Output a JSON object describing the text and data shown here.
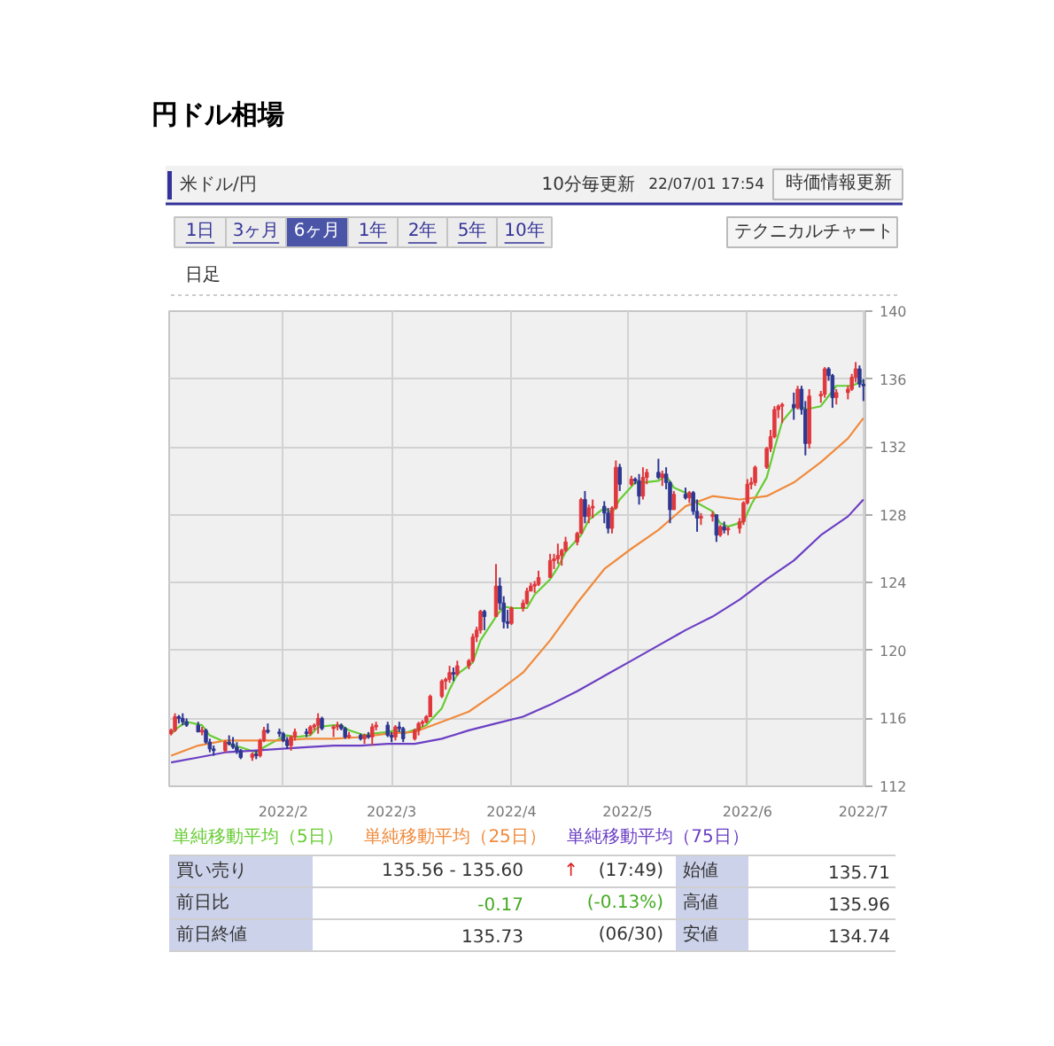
{
  "chart_data": {
    "type": "candlestick",
    "title": "円ドル相場",
    "subtitle": "米ドル/円",
    "x": [
      "2022-01-03",
      "2022-01-04",
      "2022-01-05",
      "2022-01-06",
      "2022-01-07",
      "2022-01-10",
      "2022-01-11",
      "2022-01-12",
      "2022-01-13",
      "2022-01-14",
      "2022-01-17",
      "2022-01-18",
      "2022-01-19",
      "2022-01-20",
      "2022-01-21",
      "2022-01-24",
      "2022-01-25",
      "2022-01-26",
      "2022-01-27",
      "2022-01-28",
      "2022-01-31",
      "2022-02-01",
      "2022-02-02",
      "2022-02-03",
      "2022-02-04",
      "2022-02-07",
      "2022-02-08",
      "2022-02-09",
      "2022-02-10",
      "2022-02-11",
      "2022-02-14",
      "2022-02-15",
      "2022-02-16",
      "2022-02-17",
      "2022-02-18",
      "2022-02-21",
      "2022-02-22",
      "2022-02-23",
      "2022-02-24",
      "2022-02-25",
      "2022-02-28",
      "2022-03-01",
      "2022-03-02",
      "2022-03-03",
      "2022-03-04",
      "2022-03-07",
      "2022-03-08",
      "2022-03-09",
      "2022-03-10",
      "2022-03-11",
      "2022-03-14",
      "2022-03-15",
      "2022-03-16",
      "2022-03-17",
      "2022-03-18",
      "2022-03-21",
      "2022-03-22",
      "2022-03-23",
      "2022-03-24",
      "2022-03-25",
      "2022-03-28",
      "2022-03-29",
      "2022-03-30",
      "2022-03-31",
      "2022-04-01",
      "2022-04-04",
      "2022-04-05",
      "2022-04-06",
      "2022-04-07",
      "2022-04-08",
      "2022-04-11",
      "2022-04-12",
      "2022-04-13",
      "2022-04-14",
      "2022-04-15",
      "2022-04-18",
      "2022-04-19",
      "2022-04-20",
      "2022-04-21",
      "2022-04-22",
      "2022-04-25",
      "2022-04-26",
      "2022-04-27",
      "2022-04-28",
      "2022-04-29",
      "2022-05-02",
      "2022-05-03",
      "2022-05-04",
      "2022-05-05",
      "2022-05-06",
      "2022-05-09",
      "2022-05-10",
      "2022-05-11",
      "2022-05-12",
      "2022-05-13",
      "2022-05-16",
      "2022-05-17",
      "2022-05-18",
      "2022-05-19",
      "2022-05-20",
      "2022-05-23",
      "2022-05-24",
      "2022-05-25",
      "2022-05-26",
      "2022-05-27",
      "2022-05-30",
      "2022-05-31",
      "2022-06-01",
      "2022-06-02",
      "2022-06-03",
      "2022-06-06",
      "2022-06-07",
      "2022-06-08",
      "2022-06-09",
      "2022-06-10",
      "2022-06-13",
      "2022-06-14",
      "2022-06-15",
      "2022-06-16",
      "2022-06-17",
      "2022-06-20",
      "2022-06-21",
      "2022-06-22",
      "2022-06-23",
      "2022-06-24",
      "2022-06-27",
      "2022-06-28",
      "2022-06-29",
      "2022-06-30",
      "2022-07-01"
    ],
    "ohlc": [
      [
        115.1,
        115.4,
        115.0,
        115.3
      ],
      [
        115.3,
        116.3,
        115.2,
        116.1
      ],
      [
        116.1,
        116.2,
        115.7,
        116.0
      ],
      [
        116.0,
        116.3,
        115.6,
        115.8
      ],
      [
        115.8,
        116.0,
        115.5,
        115.6
      ],
      [
        115.6,
        115.8,
        115.2,
        115.2
      ],
      [
        115.2,
        115.5,
        115.0,
        115.3
      ],
      [
        115.3,
        115.4,
        114.5,
        114.6
      ],
      [
        114.6,
        114.8,
        114.0,
        114.2
      ],
      [
        114.2,
        114.4,
        113.8,
        114.1
      ],
      [
        114.1,
        114.7,
        114.0,
        114.6
      ],
      [
        114.6,
        115.0,
        114.4,
        114.5
      ],
      [
        114.5,
        114.9,
        114.2,
        114.3
      ],
      [
        114.3,
        114.6,
        113.9,
        114.1
      ],
      [
        114.1,
        114.2,
        113.6,
        113.7
      ],
      [
        113.7,
        114.0,
        113.5,
        113.9
      ],
      [
        113.9,
        114.1,
        113.6,
        113.8
      ],
      [
        113.8,
        114.8,
        113.7,
        114.7
      ],
      [
        114.7,
        115.5,
        114.6,
        115.3
      ],
      [
        115.3,
        115.7,
        115.1,
        115.2
      ],
      [
        115.2,
        115.4,
        114.9,
        115.1
      ],
      [
        115.1,
        115.2,
        114.6,
        114.7
      ],
      [
        114.7,
        114.9,
        114.2,
        114.4
      ],
      [
        114.4,
        115.0,
        114.1,
        114.9
      ],
      [
        114.9,
        115.4,
        114.7,
        115.2
      ],
      [
        115.2,
        115.4,
        114.9,
        115.1
      ],
      [
        115.1,
        115.6,
        115.0,
        115.5
      ],
      [
        115.5,
        115.7,
        115.3,
        115.6
      ],
      [
        115.6,
        116.3,
        115.1,
        116.0
      ],
      [
        116.0,
        116.1,
        115.3,
        115.4
      ],
      [
        115.4,
        115.6,
        114.9,
        115.5
      ],
      [
        115.5,
        115.8,
        115.3,
        115.6
      ],
      [
        115.6,
        115.7,
        115.3,
        115.4
      ],
      [
        115.4,
        115.5,
        114.8,
        114.9
      ],
      [
        114.9,
        115.2,
        114.8,
        115.0
      ],
      [
        115.0,
        115.1,
        114.7,
        114.8
      ],
      [
        114.8,
        115.1,
        114.5,
        115.0
      ],
      [
        115.0,
        115.2,
        114.8,
        114.9
      ],
      [
        114.9,
        115.7,
        114.4,
        115.5
      ],
      [
        115.5,
        115.8,
        115.3,
        115.6
      ],
      [
        115.6,
        115.8,
        114.9,
        115.0
      ],
      [
        115.0,
        115.2,
        114.6,
        114.9
      ],
      [
        114.9,
        115.6,
        114.7,
        115.5
      ],
      [
        115.5,
        115.8,
        115.2,
        115.4
      ],
      [
        115.4,
        115.5,
        114.6,
        114.8
      ],
      [
        114.8,
        115.4,
        114.7,
        115.3
      ],
      [
        115.3,
        115.8,
        115.0,
        115.7
      ],
      [
        115.7,
        115.9,
        115.5,
        115.8
      ],
      [
        115.8,
        116.2,
        115.7,
        116.1
      ],
      [
        116.1,
        117.4,
        116.1,
        117.3
      ],
      [
        117.3,
        118.3,
        117.2,
        118.2
      ],
      [
        118.2,
        118.4,
        117.7,
        118.3
      ],
      [
        118.3,
        119.1,
        118.1,
        118.7
      ],
      [
        118.7,
        119.0,
        118.2,
        118.6
      ],
      [
        118.6,
        119.4,
        118.5,
        119.1
      ],
      [
        119.1,
        119.5,
        118.9,
        119.4
      ],
      [
        119.4,
        121.0,
        119.3,
        120.8
      ],
      [
        120.8,
        121.4,
        120.5,
        121.2
      ],
      [
        121.2,
        122.4,
        121.0,
        122.3
      ],
      [
        122.3,
        122.4,
        121.2,
        122.0
      ],
      [
        122.0,
        125.1,
        122.0,
        123.8
      ],
      [
        123.8,
        124.3,
        122.4,
        122.8
      ],
      [
        122.8,
        123.2,
        121.3,
        121.7
      ],
      [
        121.7,
        122.4,
        121.3,
        121.6
      ],
      [
        121.6,
        122.6,
        121.5,
        122.5
      ],
      [
        122.5,
        123.0,
        122.3,
        122.8
      ],
      [
        122.8,
        123.7,
        122.7,
        123.5
      ],
      [
        123.5,
        124.0,
        123.5,
        123.8
      ],
      [
        123.8,
        124.1,
        123.4,
        123.9
      ],
      [
        123.9,
        124.7,
        123.8,
        124.3
      ],
      [
        124.3,
        125.7,
        124.3,
        125.3
      ],
      [
        125.3,
        125.7,
        124.8,
        125.4
      ],
      [
        125.4,
        126.3,
        125.1,
        125.6
      ],
      [
        125.6,
        126.0,
        125.0,
        125.9
      ],
      [
        125.9,
        126.7,
        125.8,
        126.4
      ],
      [
        126.4,
        127.0,
        126.2,
        126.9
      ],
      [
        126.9,
        129.0,
        126.9,
        128.9
      ],
      [
        128.9,
        129.4,
        127.5,
        127.9
      ],
      [
        127.9,
        128.6,
        127.5,
        128.4
      ],
      [
        128.4,
        128.9,
        127.8,
        128.5
      ],
      [
        128.5,
        128.8,
        127.5,
        128.1
      ],
      [
        128.1,
        128.4,
        126.9,
        127.2
      ],
      [
        127.2,
        128.5,
        126.9,
        128.4
      ],
      [
        128.4,
        131.2,
        128.3,
        130.8
      ],
      [
        130.8,
        131.0,
        129.4,
        129.8
      ],
      [
        129.8,
        130.3,
        129.7,
        130.1
      ],
      [
        130.1,
        130.2,
        129.8,
        130.0
      ],
      [
        130.0,
        130.4,
        128.6,
        129.1
      ],
      [
        129.1,
        130.8,
        128.9,
        130.2
      ],
      [
        130.2,
        130.7,
        129.8,
        130.5
      ],
      [
        130.5,
        131.3,
        130.1,
        130.2
      ],
      [
        130.2,
        130.6,
        129.7,
        130.4
      ],
      [
        130.4,
        130.8,
        129.5,
        129.9
      ],
      [
        129.9,
        130.0,
        127.5,
        128.3
      ],
      [
        128.3,
        129.4,
        128.3,
        129.2
      ],
      [
        129.2,
        129.6,
        128.9,
        129.0
      ],
      [
        129.0,
        129.4,
        128.7,
        129.3
      ],
      [
        129.3,
        129.4,
        128.0,
        128.2
      ],
      [
        128.2,
        128.9,
        127.0,
        127.8
      ],
      [
        127.8,
        128.1,
        127.4,
        127.9
      ],
      [
        127.9,
        128.2,
        127.6,
        128.0
      ],
      [
        128.0,
        128.0,
        126.4,
        126.8
      ],
      [
        126.8,
        127.4,
        126.7,
        127.3
      ],
      [
        127.3,
        127.6,
        126.9,
        127.1
      ],
      [
        127.1,
        127.3,
        126.8,
        127.2
      ],
      [
        127.2,
        127.8,
        126.9,
        127.6
      ],
      [
        127.6,
        128.8,
        127.4,
        128.7
      ],
      [
        128.7,
        130.1,
        128.6,
        129.8
      ],
      [
        129.8,
        130.2,
        129.5,
        129.9
      ],
      [
        129.9,
        130.9,
        129.7,
        130.8
      ],
      [
        130.8,
        132.0,
        130.7,
        131.9
      ],
      [
        131.9,
        133.0,
        131.7,
        132.6
      ],
      [
        132.6,
        134.4,
        132.5,
        134.2
      ],
      [
        134.2,
        134.5,
        133.7,
        134.4
      ],
      [
        134.4,
        134.6,
        133.4,
        134.5
      ],
      [
        134.5,
        135.2,
        133.6,
        134.3
      ],
      [
        134.3,
        135.6,
        134.2,
        135.4
      ],
      [
        135.4,
        135.6,
        133.9,
        134.2
      ],
      [
        134.2,
        134.7,
        131.5,
        132.2
      ],
      [
        132.2,
        135.4,
        131.9,
        135.0
      ],
      [
        135.0,
        135.3,
        134.6,
        135.1
      ],
      [
        135.1,
        136.7,
        134.9,
        136.6
      ],
      [
        136.6,
        136.7,
        135.9,
        136.2
      ],
      [
        136.2,
        136.3,
        134.3,
        134.9
      ],
      [
        134.9,
        135.4,
        134.5,
        135.2
      ],
      [
        135.2,
        135.6,
        134.8,
        135.4
      ],
      [
        135.4,
        136.3,
        135.3,
        136.1
      ],
      [
        136.1,
        137.0,
        135.8,
        136.6
      ],
      [
        136.6,
        136.8,
        135.5,
        135.7
      ],
      [
        135.7,
        136.0,
        134.7,
        135.6
      ]
    ],
    "colors": [
      "#e0383c",
      "#e0383c",
      "#2e3892",
      "#2e3892",
      "#2e3892",
      "#2e3892",
      "#e0383c",
      "#2e3892",
      "#2e3892",
      "#2e3892",
      "#e0383c",
      "#2e3892",
      "#2e3892",
      "#2e3892",
      "#2e3892",
      "#e0383c",
      "#2e3892",
      "#e0383c",
      "#e0383c",
      "#2e3892",
      "#2e3892",
      "#2e3892",
      "#2e3892",
      "#e0383c",
      "#e0383c",
      "#2e3892",
      "#e0383c",
      "#e0383c",
      "#e0383c",
      "#2e3892",
      "#e0383c",
      "#e0383c",
      "#2e3892",
      "#2e3892",
      "#e0383c",
      "#2e3892",
      "#e0383c",
      "#2e3892",
      "#e0383c",
      "#e0383c",
      "#2e3892",
      "#2e3892",
      "#e0383c",
      "#2e3892",
      "#2e3892",
      "#e0383c",
      "#e0383c",
      "#e0383c",
      "#e0383c",
      "#e0383c",
      "#e0383c",
      "#e0383c",
      "#e0383c",
      "#2e3892",
      "#e0383c",
      "#e0383c",
      "#e0383c",
      "#e0383c",
      "#e0383c",
      "#2e3892",
      "#e0383c",
      "#2e3892",
      "#2e3892",
      "#2e3892",
      "#e0383c",
      "#e0383c",
      "#e0383c",
      "#e0383c",
      "#e0383c",
      "#e0383c",
      "#e0383c",
      "#e0383c",
      "#e0383c",
      "#e0383c",
      "#e0383c",
      "#e0383c",
      "#e0383c",
      "#2e3892",
      "#e0383c",
      "#e0383c",
      "#2e3892",
      "#2e3892",
      "#e0383c",
      "#e0383c",
      "#2e3892",
      "#e0383c",
      "#2e3892",
      "#2e3892",
      "#e0383c",
      "#e0383c",
      "#2e3892",
      "#e0383c",
      "#2e3892",
      "#2e3892",
      "#e0383c",
      "#2e3892",
      "#e0383c",
      "#2e3892",
      "#2e3892",
      "#e0383c",
      "#e0383c",
      "#2e3892",
      "#e0383c",
      "#2e3892",
      "#e0383c",
      "#e0383c",
      "#e0383c",
      "#e0383c",
      "#e0383c",
      "#e0383c",
      "#e0383c",
      "#e0383c",
      "#e0383c",
      "#e0383c",
      "#e0383c",
      "#2e3892",
      "#e0383c",
      "#2e3892",
      "#2e3892",
      "#e0383c",
      "#e0383c",
      "#e0383c",
      "#2e3892",
      "#2e3892",
      "#e0383c",
      "#e0383c",
      "#e0383c",
      "#e0383c",
      "#2e3892",
      "#2e3892"
    ],
    "series": [
      {
        "type": "line",
        "name": "単純移動平均（5日）",
        "color": "#66cc33",
        "x": [
          "2022-01-03",
          "2022-01-05",
          "2022-01-07",
          "2022-01-11",
          "2022-01-13",
          "2022-01-17",
          "2022-01-19",
          "2022-01-21",
          "2022-01-25",
          "2022-01-27",
          "2022-01-31",
          "2022-02-02",
          "2022-02-04",
          "2022-02-08",
          "2022-02-10",
          "2022-02-14",
          "2022-02-16",
          "2022-02-18",
          "2022-02-22",
          "2022-02-24",
          "2022-02-28",
          "2022-03-02",
          "2022-03-04",
          "2022-03-08",
          "2022-03-10",
          "2022-03-14",
          "2022-03-16",
          "2022-03-18",
          "2022-03-22",
          "2022-03-24",
          "2022-03-28",
          "2022-03-30",
          "2022-04-01",
          "2022-04-05",
          "2022-04-07",
          "2022-04-11",
          "2022-04-13",
          "2022-04-15",
          "2022-04-19",
          "2022-04-21",
          "2022-04-25",
          "2022-04-27",
          "2022-04-29",
          "2022-05-03",
          "2022-05-05",
          "2022-05-09",
          "2022-05-11",
          "2022-05-13",
          "2022-05-17",
          "2022-05-19",
          "2022-05-23",
          "2022-05-25",
          "2022-05-27",
          "2022-05-31",
          "2022-06-02",
          "2022-06-06",
          "2022-06-08",
          "2022-06-10",
          "2022-06-14",
          "2022-06-16",
          "2022-06-20",
          "2022-06-22",
          "2022-06-24",
          "2022-06-28",
          "2022-06-30",
          "2022-07-01"
        ],
        "values": [
          115.1,
          115.5,
          115.8,
          115.6,
          115.0,
          114.6,
          114.4,
          114.3,
          114.0,
          114.3,
          114.8,
          115.0,
          114.9,
          115.0,
          115.5,
          115.6,
          115.6,
          115.3,
          115.0,
          115.1,
          115.2,
          115.3,
          115.1,
          115.4,
          115.6,
          116.6,
          117.7,
          118.6,
          119.3,
          120.6,
          122.0,
          122.6,
          122.5,
          122.5,
          123.3,
          124.2,
          124.9,
          125.8,
          126.8,
          127.7,
          128.4,
          128.1,
          128.9,
          129.9,
          129.9,
          130.0,
          130.3,
          129.6,
          129.2,
          128.7,
          128.2,
          127.5,
          127.3,
          127.6,
          128.6,
          130.2,
          131.9,
          133.5,
          134.6,
          134.2,
          134.4,
          135.0,
          135.6,
          135.6,
          135.8,
          135.9
        ]
      },
      {
        "type": "line",
        "name": "単純移動平均（25日）",
        "color": "#f08a3c",
        "x": [
          "2022-01-03",
          "2022-01-10",
          "2022-01-17",
          "2022-01-24",
          "2022-01-31",
          "2022-02-07",
          "2022-02-14",
          "2022-02-21",
          "2022-02-28",
          "2022-03-07",
          "2022-03-14",
          "2022-03-21",
          "2022-03-28",
          "2022-04-04",
          "2022-04-11",
          "2022-04-18",
          "2022-04-25",
          "2022-05-02",
          "2022-05-09",
          "2022-05-16",
          "2022-05-23",
          "2022-05-30",
          "2022-06-06",
          "2022-06-13",
          "2022-06-20",
          "2022-06-27",
          "2022-07-01"
        ],
        "values": [
          113.8,
          114.4,
          114.7,
          114.7,
          114.7,
          114.8,
          114.8,
          114.9,
          115.1,
          115.2,
          115.8,
          116.4,
          117.5,
          118.7,
          120.6,
          122.8,
          124.8,
          126.0,
          127.1,
          128.5,
          129.1,
          128.9,
          129.1,
          129.9,
          131.1,
          132.5,
          133.7
        ]
      },
      {
        "type": "line",
        "name": "単純移動平均（75日）",
        "color": "#6b3fc4",
        "x": [
          "2022-01-03",
          "2022-01-10",
          "2022-01-17",
          "2022-01-24",
          "2022-01-31",
          "2022-02-07",
          "2022-02-14",
          "2022-02-21",
          "2022-02-28",
          "2022-03-07",
          "2022-03-14",
          "2022-03-21",
          "2022-03-28",
          "2022-04-04",
          "2022-04-11",
          "2022-04-18",
          "2022-04-25",
          "2022-05-02",
          "2022-05-09",
          "2022-05-16",
          "2022-05-23",
          "2022-05-30",
          "2022-06-06",
          "2022-06-13",
          "2022-06-20",
          "2022-06-27",
          "2022-07-01"
        ],
        "values": [
          113.4,
          113.7,
          114.0,
          114.1,
          114.2,
          114.3,
          114.4,
          114.4,
          114.5,
          114.5,
          114.8,
          115.3,
          115.7,
          116.1,
          116.8,
          117.6,
          118.5,
          119.4,
          120.3,
          121.2,
          122.0,
          123.0,
          124.2,
          125.3,
          126.8,
          127.9,
          128.9
        ]
      }
    ],
    "xlim": [
      "2022-01-02T12:00",
      "2022-07-01T12:00"
    ],
    "xticks": [
      {
        "value": "2022-02-01",
        "label": "2022/2"
      },
      {
        "value": "2022-03-01",
        "label": "2022/3"
      },
      {
        "value": "2022-04-01",
        "label": "2022/4"
      },
      {
        "value": "2022-05-01",
        "label": "2022/5"
      },
      {
        "value": "2022-06-01",
        "label": "2022/6"
      },
      {
        "value": "2022-07-01",
        "label": "2022/7"
      }
    ],
    "ylim": [
      112,
      140
    ],
    "yticks": [
      112,
      116,
      120,
      124,
      128,
      132,
      136,
      140
    ],
    "grid": true,
    "legend": "bottom",
    "annotations": [
      "10分毎更新",
      "22/07/01 17:54",
      "時価情報更新",
      "1日",
      "3ヶ月",
      "6ヶ月",
      "1年",
      "2年",
      "5年",
      "10年",
      "テクニカルチャート",
      "日足",
      "買い売り",
      "135.56 - 135.60",
      "↑",
      "(17:49)",
      "始値",
      "135.71",
      "前日比",
      "-0.17",
      "(-0.13%)",
      "高値",
      "135.96",
      "前日終値",
      "135.73",
      "(06/30)",
      "安値",
      "134.74"
    ]
  }
}
